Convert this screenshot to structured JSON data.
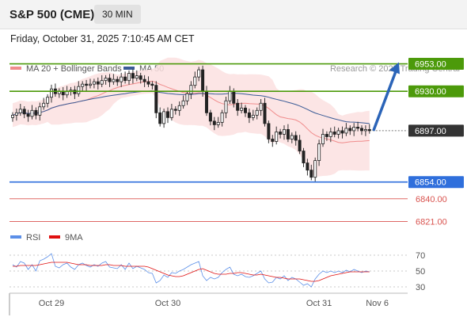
{
  "header": {
    "title": "S&P 500 (CME)",
    "interval": "30 MIN"
  },
  "datetime": "Friday, October 31, 2025 7:10:45 AM CET",
  "chart_data": [
    {
      "type": "candlestick",
      "legend": [
        {
          "label": "MA 20 + Bollinger Bands",
          "color": "#f08c8c"
        },
        {
          "label": "MA 50",
          "color": "#3a5b96"
        }
      ],
      "credit": "Research © 2025 Trading Central",
      "ylim": [
        6814,
        6960
      ],
      "levels": [
        {
          "value": 6953.0,
          "label": "6953.00",
          "color": "#4c9a0a",
          "kind": "resistance"
        },
        {
          "value": 6930.0,
          "label": "6930.00",
          "color": "#4c9a0a",
          "kind": "resistance"
        },
        {
          "value": 6897.0,
          "label": "6897.00",
          "color": "#333333",
          "kind": "last"
        },
        {
          "value": 6854.0,
          "label": "6854.00",
          "color": "#2f6fdc",
          "kind": "pivot"
        },
        {
          "value": 6840.0,
          "label": "6840.00",
          "color": "#d9534f",
          "kind": "support"
        },
        {
          "value": 6821.0,
          "label": "6821.00",
          "color": "#d9534f",
          "kind": "support"
        }
      ],
      "forecast_arrow": {
        "from": 6897,
        "to": 6953
      },
      "closes": [
        6910,
        6912,
        6915,
        6911,
        6909,
        6914,
        6910,
        6917,
        6920,
        6925,
        6932,
        6928,
        6930,
        6927,
        6930,
        6931,
        6928,
        6934,
        6936,
        6935,
        6936,
        6938,
        6936,
        6939,
        6941,
        6938,
        6940,
        6938,
        6942,
        6939,
        6945,
        6941,
        6943,
        6940,
        6938,
        6936,
        6935,
        6912,
        6903,
        6913,
        6908,
        6915,
        6914,
        6918,
        6922,
        6928,
        6935,
        6942,
        6948,
        6930,
        6912,
        6905,
        6902,
        6904,
        6912,
        6922,
        6930,
        6920,
        6914,
        6916,
        6912,
        6908,
        6910,
        6914,
        6920,
        6903,
        6890,
        6888,
        6896,
        6894,
        6898,
        6890,
        6893,
        6889,
        6880,
        6870,
        6864,
        6858,
        6872,
        6886,
        6894,
        6892,
        6896,
        6894,
        6897,
        6895,
        6899,
        6897,
        6900,
        6899,
        6897,
        6898,
        6897
      ],
      "indicator": {
        "name": "RSI",
        "ma_name": "9MA",
        "rsi_color": "#5b8fe8",
        "ma_color": "#e01010",
        "ylim": [
          20,
          80
        ],
        "ticks": [
          "70",
          "50",
          "30"
        ],
        "rsi": [
          58,
          55,
          62,
          60,
          52,
          58,
          50,
          63,
          65,
          68,
          72,
          56,
          54,
          58,
          60,
          55,
          52,
          58,
          60,
          57,
          55,
          58,
          56,
          60,
          62,
          55,
          54,
          53,
          58,
          52,
          60,
          53,
          56,
          54,
          52,
          48,
          47,
          35,
          38,
          45,
          42,
          48,
          47,
          50,
          52,
          55,
          58,
          60,
          62,
          44,
          38,
          42,
          40,
          42,
          48,
          52,
          55,
          46,
          44,
          46,
          43,
          42,
          44,
          47,
          50,
          40,
          35,
          36,
          42,
          40,
          44,
          38,
          42,
          40,
          36,
          32,
          34,
          30,
          40,
          46,
          50,
          48,
          50,
          48,
          50,
          48,
          51,
          49,
          52,
          50,
          48,
          50,
          49
        ],
        "ma9": [
          56,
          56,
          57,
          57,
          57,
          57,
          57,
          58,
          59,
          60,
          61,
          61,
          61,
          61,
          61,
          60,
          59,
          58,
          58,
          58,
          57,
          57,
          57,
          57,
          58,
          58,
          57,
          57,
          57,
          56,
          56,
          56,
          56,
          56,
          56,
          55,
          53,
          51,
          49,
          47,
          45,
          44,
          43,
          43,
          44,
          46,
          48,
          50,
          52,
          53,
          51,
          49,
          47,
          46,
          46,
          46,
          47,
          47,
          48,
          48,
          47,
          46,
          45,
          45,
          46,
          45,
          44,
          43,
          42,
          42,
          41,
          40,
          40,
          40,
          40,
          39,
          38,
          37,
          37,
          38,
          40,
          42,
          44,
          45,
          46,
          47,
          48,
          49,
          49,
          49,
          49,
          49,
          49
        ]
      },
      "x_labels": [
        {
          "label": "Oct 29",
          "index": 10
        },
        {
          "label": "Oct 30",
          "index": 40
        },
        {
          "label": "Oct 31",
          "index": 79
        },
        {
          "label": "Nov 6",
          "index": 94
        }
      ]
    }
  ]
}
